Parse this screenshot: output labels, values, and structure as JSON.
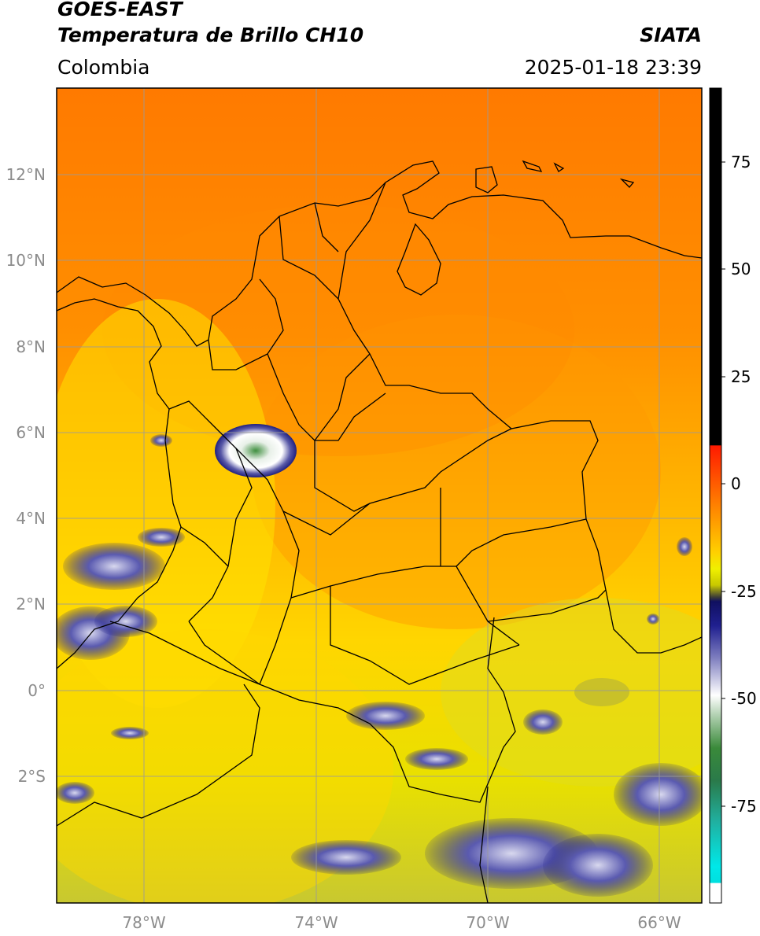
{
  "header": {
    "satellite": "GOES-EAST",
    "product": "Temperatura de Brillo CH10",
    "region": "Colombia",
    "agency": "SIATA",
    "timestamp": "2025-01-18 23:39"
  },
  "map": {
    "lat_ticks": [
      "12°N",
      "10°N",
      "8°N",
      "6°N",
      "4°N",
      "2°N",
      "0°",
      "2°S"
    ],
    "lon_ticks": [
      "78°W",
      "74°W",
      "70°W",
      "66°W"
    ],
    "gridlines": true,
    "colors": {
      "warm": "#ff8c00",
      "mid": "#ffd000",
      "cool": "#f5f000",
      "cloud_blue": "#1c1c8a",
      "cloud_white": "#ffffff",
      "cloud_green": "#4f9a4f"
    }
  },
  "colorbar": {
    "ticks": [
      "75",
      "50",
      "25",
      "0",
      "-25",
      "-50",
      "-75"
    ]
  }
}
